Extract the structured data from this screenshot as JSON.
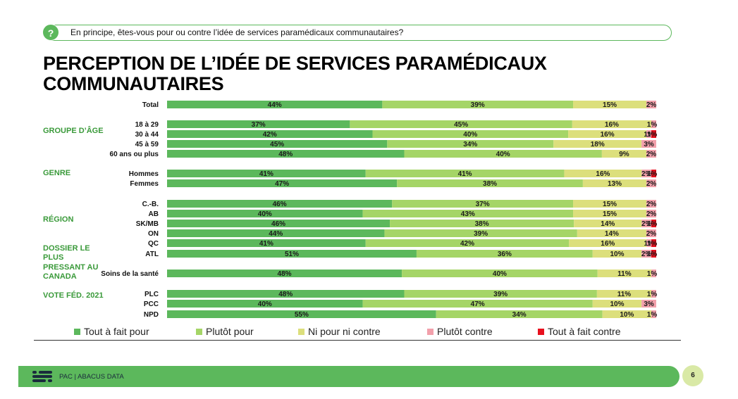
{
  "question": "En principe, êtes-vous pour ou contre l’idée de services paramédicaux communautaires?",
  "question_icon": "?",
  "title_line1": "PERCEPTION DE L’IDÉE DE SERVICES PARAMÉDICAUX",
  "title_line2": "COMMUNAUTAIRES",
  "footer": {
    "brand": "PAC | ABACUS DATA",
    "page": "6"
  },
  "colors": [
    "#5cb85c",
    "#a5d567",
    "#dcdf7c",
    "#f2a0ab",
    "#e8101e"
  ],
  "chart_data": {
    "type": "stacked-bar-horizontal",
    "series_names": [
      "Tout à fait pour",
      "Plutôt pour",
      "Ni pour ni contre",
      "Plutôt contre",
      "Tout à fait contre"
    ],
    "groups": [
      {
        "label": "",
        "rows": [
          {
            "label": "Total",
            "values": [
              44,
              39,
              15,
              2,
              0
            ],
            "labels": [
              "44%",
              "39%",
              "15%",
              "2%",
              ""
            ]
          }
        ]
      },
      {
        "label": "GROUPE D’ÂGE",
        "rows": [
          {
            "label": "18 à 29",
            "values": [
              37,
              45,
              16,
              1,
              0
            ],
            "labels": [
              "37%",
              "45%",
              "16%",
              "1%",
              ""
            ]
          },
          {
            "label": "30 à 44",
            "values": [
              42,
              40,
              16,
              1,
              1
            ],
            "labels": [
              "42%",
              "40%",
              "16%",
              "1%",
              "1%"
            ]
          },
          {
            "label": "45 à 59",
            "values": [
              45,
              34,
              18,
              3,
              0
            ],
            "labels": [
              "45%",
              "34%",
              "18%",
              "3%",
              ""
            ]
          },
          {
            "label": "60 ans ou plus",
            "values": [
              48,
              40,
              9,
              2,
              0
            ],
            "labels": [
              "48%",
              "40%",
              "9%",
              "2%",
              ""
            ]
          }
        ]
      },
      {
        "label": "GENRE",
        "rows": [
          {
            "label": "Hommes",
            "values": [
              41,
              41,
              16,
              2,
              1
            ],
            "labels": [
              "41%",
              "41%",
              "16%",
              "2%",
              "1%"
            ]
          },
          {
            "label": "Femmes",
            "values": [
              47,
              38,
              13,
              2,
              0
            ],
            "labels": [
              "47%",
              "38%",
              "13%",
              "2%",
              ""
            ]
          }
        ]
      },
      {
        "label": "RÉGION",
        "rows": [
          {
            "label": "C.-B.",
            "values": [
              46,
              37,
              15,
              2,
              0
            ],
            "labels": [
              "46%",
              "37%",
              "15%",
              "2%",
              ""
            ]
          },
          {
            "label": "AB",
            "values": [
              40,
              43,
              15,
              2,
              0
            ],
            "labels": [
              "40%",
              "43%",
              "15%",
              "2%",
              ""
            ]
          },
          {
            "label": "SK/MB",
            "values": [
              46,
              38,
              14,
              2,
              1
            ],
            "labels": [
              "46%",
              "38%",
              "14%",
              "2%",
              "1%"
            ]
          },
          {
            "label": "ON",
            "values": [
              44,
              39,
              14,
              2,
              0
            ],
            "labels": [
              "44%",
              "39%",
              "14%",
              "2%",
              ""
            ]
          },
          {
            "label": "QC",
            "values": [
              41,
              42,
              16,
              1,
              1
            ],
            "labels": [
              "41%",
              "42%",
              "16%",
              "1%",
              "1%"
            ]
          },
          {
            "label": "ATL",
            "values": [
              51,
              36,
              10,
              2,
              1
            ],
            "labels": [
              "51%",
              "36%",
              "10%",
              "2%",
              "1%"
            ]
          }
        ]
      },
      {
        "label": "DOSSIER LE PLUS PRESSANT AU CANADA",
        "rows": [
          {
            "label": "Soins de la santé",
            "values": [
              48,
              40,
              11,
              1,
              0
            ],
            "labels": [
              "48%",
              "40%",
              "11%",
              "1%",
              ""
            ]
          }
        ]
      },
      {
        "label": "VOTE FÉD. 2021",
        "rows": [
          {
            "label": "PLC",
            "values": [
              48,
              39,
              11,
              1,
              0
            ],
            "labels": [
              "48%",
              "39%",
              "11%",
              "1%",
              ""
            ]
          },
          {
            "label": "PCC",
            "values": [
              40,
              47,
              10,
              3,
              0
            ],
            "labels": [
              "40%",
              "47%",
              "10%",
              "3%",
              ""
            ]
          },
          {
            "label": "NPD",
            "values": [
              55,
              34,
              10,
              1,
              0
            ],
            "labels": [
              "55%",
              "34%",
              "10%",
              "1%",
              ""
            ]
          }
        ]
      }
    ]
  }
}
